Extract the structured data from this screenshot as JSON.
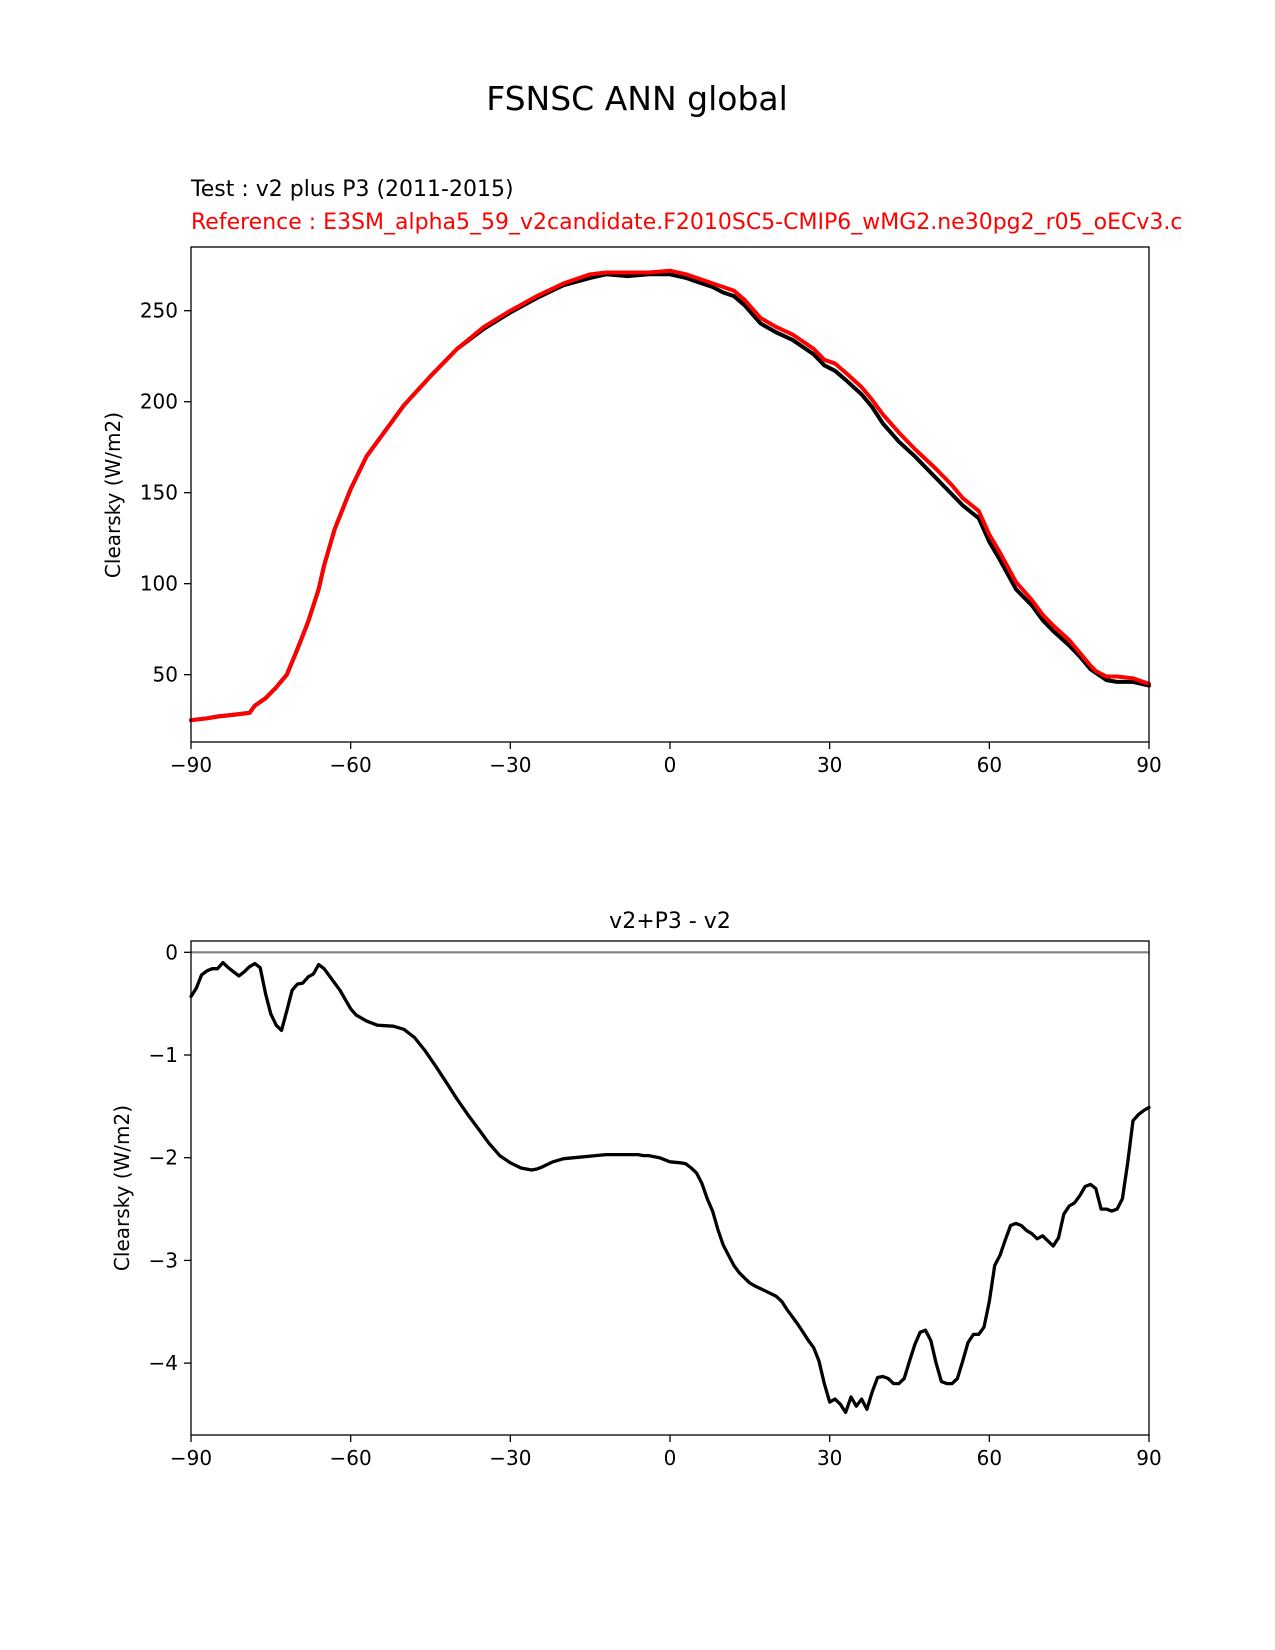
{
  "figure": {
    "suptitle": "FSNSC ANN global",
    "test_label": "Test : v2 plus P3 (2011-2015)",
    "reference_label": "Reference : E3SM_alpha5_59_v2candidate.F2010SC5-CMIP6_wMG2.ne30pg2_r05_oECv3.c",
    "colors": {
      "test": "#000000",
      "reference": "#ff0000",
      "zero_line": "#808080"
    }
  },
  "chart_data": [
    {
      "type": "line",
      "title": "",
      "xlabel": "",
      "ylabel": "Clearsky (W/m2)",
      "xlim": [
        -90,
        90
      ],
      "ylim": [
        13,
        285
      ],
      "xticks": [
        -90,
        -60,
        -30,
        0,
        30,
        60,
        90
      ],
      "xtick_labels": [
        "−90",
        "−60",
        "−30",
        "0",
        "30",
        "60",
        "90"
      ],
      "yticks": [
        50,
        100,
        150,
        200,
        250
      ],
      "ytick_labels": [
        "50",
        "100",
        "150",
        "200",
        "250"
      ],
      "grid": false,
      "series": [
        {
          "role": "test",
          "x": [
            -90,
            -87,
            -85,
            -82,
            -79,
            -78,
            -76,
            -74,
            -72,
            -70,
            -68,
            -66,
            -65,
            -63,
            -60,
            -57,
            -55,
            -50,
            -45,
            -40,
            -35,
            -30,
            -25,
            -20,
            -15,
            -12,
            -8,
            -4,
            0,
            3,
            5,
            8,
            10,
            12,
            14,
            17,
            20,
            23,
            25,
            27,
            29,
            31,
            33,
            36,
            38,
            40,
            43,
            46,
            50,
            53,
            55,
            58,
            60,
            62,
            65,
            68,
            70,
            72,
            75,
            77,
            79,
            80,
            82,
            84,
            87,
            90
          ],
          "y": [
            25,
            26,
            27,
            28,
            29,
            33,
            37,
            43,
            50,
            64,
            79,
            97,
            110,
            130,
            152,
            170,
            178,
            198,
            214,
            229,
            240,
            249,
            257,
            264,
            268,
            270,
            269,
            270,
            270,
            268,
            266,
            263,
            260,
            258,
            253,
            243,
            238,
            234,
            230,
            226,
            220,
            217,
            212,
            204,
            197,
            188,
            178,
            170,
            158,
            149,
            143,
            136,
            123,
            113,
            97,
            88,
            80,
            74,
            66,
            60,
            53,
            51,
            47,
            46,
            46,
            44
          ]
        },
        {
          "role": "reference",
          "x": [
            -90,
            -87,
            -85,
            -82,
            -79,
            -78,
            -76,
            -74,
            -72,
            -70,
            -68,
            -66,
            -65,
            -63,
            -60,
            -57,
            -55,
            -50,
            -45,
            -40,
            -35,
            -30,
            -25,
            -20,
            -15,
            -12,
            -8,
            -4,
            0,
            3,
            5,
            8,
            10,
            12,
            14,
            17,
            20,
            23,
            25,
            27,
            29,
            31,
            33,
            36,
            38,
            40,
            43,
            46,
            50,
            53,
            55,
            58,
            60,
            62,
            65,
            68,
            70,
            72,
            75,
            77,
            79,
            80,
            82,
            84,
            87,
            90
          ],
          "y": [
            25,
            26,
            27,
            28,
            29,
            33,
            37,
            43,
            50,
            64,
            79,
            97,
            110,
            130,
            152,
            170,
            178,
            198,
            214,
            229,
            241,
            250,
            258,
            265,
            270,
            271,
            271,
            271,
            272,
            270,
            268,
            265,
            263,
            261,
            256,
            246,
            241,
            237,
            233,
            229,
            223,
            221,
            216,
            208,
            201,
            193,
            183,
            174,
            163,
            154,
            147,
            140,
            127,
            117,
            101,
            91,
            83,
            77,
            69,
            62,
            55,
            52,
            49,
            49,
            48,
            45
          ]
        }
      ]
    },
    {
      "type": "line",
      "title": "v2+P3 - v2",
      "xlabel": "",
      "ylabel": "Clearsky (W/m2)",
      "xlim": [
        -90,
        90
      ],
      "ylim": [
        -4.7,
        0.11
      ],
      "xticks": [
        -90,
        -60,
        -30,
        0,
        30,
        60,
        90
      ],
      "xtick_labels": [
        "−90",
        "−60",
        "−30",
        "0",
        "30",
        "60",
        "90"
      ],
      "yticks": [
        0,
        -1,
        -2,
        -3,
        -4
      ],
      "ytick_labels": [
        "0",
        "−1",
        "−2",
        "−3",
        "−4"
      ],
      "grid": false,
      "zero_line": 0,
      "series": [
        {
          "role": "difference",
          "x": [
            -90,
            -89,
            -88,
            -87,
            -86,
            -85,
            -84,
            -83,
            -82,
            -81,
            -80,
            -79,
            -78,
            -77,
            -76,
            -75,
            -74,
            -73,
            -72,
            -71,
            -70,
            -69,
            -68,
            -67,
            -66,
            -65,
            -64,
            -62,
            -60,
            -59,
            -57,
            -55,
            -52,
            -50,
            -48,
            -46,
            -44,
            -42,
            -40,
            -38,
            -36,
            -34,
            -32,
            -30,
            -28,
            -26,
            -25,
            -24,
            -22,
            -20,
            -18,
            -16,
            -14,
            -12,
            -10,
            -8,
            -7,
            -6,
            -5,
            -4,
            -2,
            0,
            2,
            3,
            4,
            5,
            6,
            7,
            8,
            9,
            10,
            11,
            12,
            13,
            14,
            15,
            16,
            18,
            20,
            21,
            22,
            23,
            24,
            25,
            26,
            27,
            28,
            29,
            30,
            31,
            32,
            33,
            34,
            35,
            36,
            37,
            38,
            39,
            40,
            41,
            42,
            43,
            44,
            45,
            46,
            47,
            48,
            49,
            50,
            51,
            52,
            53,
            54,
            55,
            56,
            57,
            58,
            59,
            60,
            61,
            62,
            63,
            64,
            65,
            66,
            67,
            68,
            69,
            70,
            71,
            72,
            73,
            74,
            75,
            76,
            77,
            78,
            79,
            80,
            81,
            82,
            83,
            84,
            85,
            86,
            87,
            88,
            89,
            90
          ],
          "y": [
            -0.43,
            -0.35,
            -0.22,
            -0.18,
            -0.16,
            -0.16,
            -0.1,
            -0.15,
            -0.19,
            -0.23,
            -0.19,
            -0.14,
            -0.11,
            -0.15,
            -0.4,
            -0.6,
            -0.71,
            -0.76,
            -0.57,
            -0.37,
            -0.31,
            -0.3,
            -0.24,
            -0.21,
            -0.12,
            -0.16,
            -0.23,
            -0.37,
            -0.55,
            -0.61,
            -0.67,
            -0.71,
            -0.72,
            -0.75,
            -0.83,
            -0.96,
            -1.11,
            -1.27,
            -1.43,
            -1.58,
            -1.72,
            -1.86,
            -1.98,
            -2.05,
            -2.1,
            -2.12,
            -2.11,
            -2.09,
            -2.04,
            -2.01,
            -2.0,
            -1.99,
            -1.98,
            -1.97,
            -1.97,
            -1.97,
            -1.97,
            -1.97,
            -1.98,
            -1.98,
            -2.0,
            -2.04,
            -2.05,
            -2.06,
            -2.1,
            -2.15,
            -2.25,
            -2.4,
            -2.52,
            -2.7,
            -2.85,
            -2.95,
            -3.05,
            -3.12,
            -3.17,
            -3.22,
            -3.25,
            -3.3,
            -3.35,
            -3.4,
            -3.48,
            -3.55,
            -3.62,
            -3.7,
            -3.78,
            -3.85,
            -3.98,
            -4.2,
            -4.38,
            -4.35,
            -4.4,
            -4.48,
            -4.33,
            -4.42,
            -4.35,
            -4.45,
            -4.28,
            -4.14,
            -4.13,
            -4.15,
            -4.2,
            -4.2,
            -4.15,
            -3.98,
            -3.82,
            -3.7,
            -3.68,
            -3.78,
            -4.0,
            -4.18,
            -4.2,
            -4.2,
            -4.15,
            -3.98,
            -3.8,
            -3.72,
            -3.72,
            -3.65,
            -3.4,
            -3.05,
            -2.95,
            -2.8,
            -2.66,
            -2.64,
            -2.66,
            -2.71,
            -2.74,
            -2.79,
            -2.76,
            -2.81,
            -2.86,
            -2.78,
            -2.55,
            -2.47,
            -2.44,
            -2.37,
            -2.28,
            -2.26,
            -2.3,
            -2.5,
            -2.5,
            -2.52,
            -2.5,
            -2.4,
            -2.05,
            -1.64,
            -1.58,
            -1.54,
            -1.51
          ]
        }
      ]
    }
  ]
}
